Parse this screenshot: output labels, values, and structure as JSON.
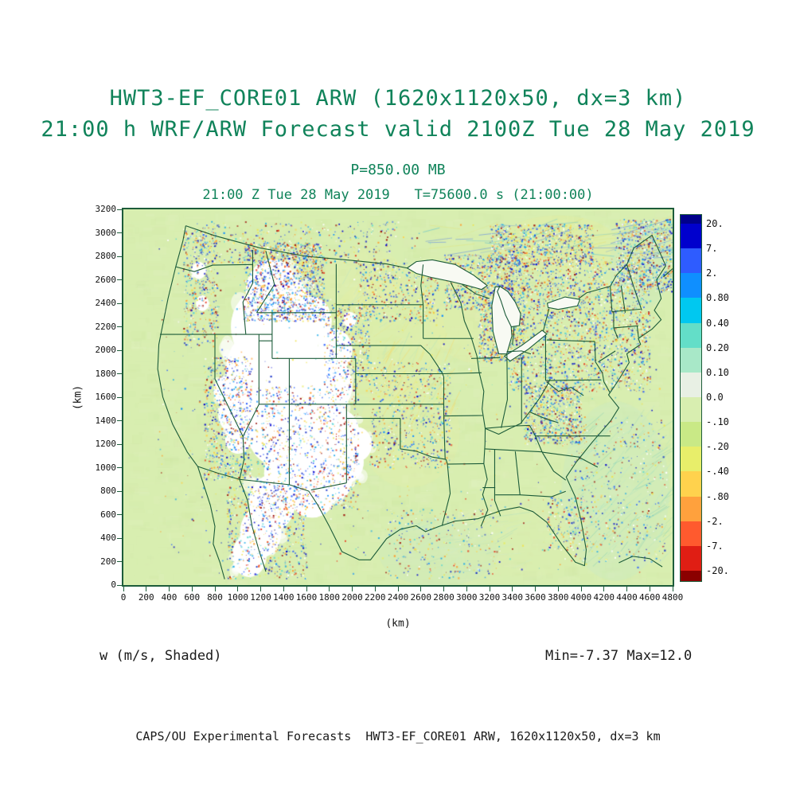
{
  "header": {
    "title_line1": "HWT3-EF_CORE01 ARW (1620x1120x50, dx=3 km)",
    "title_line2": "21:00 h WRF/ARW Forecast valid 2100Z Tue 28 May 2019",
    "pressure_label": "P=850.00 MB",
    "time_label": "21:00 Z Tue 28 May 2019   T=75600.0 s (21:00:00)",
    "text_color": "#10835a"
  },
  "axes": {
    "x": {
      "unit_label": "(km)",
      "min": 0,
      "max": 4800,
      "tick_step": 200,
      "tick_labels": [
        "0",
        "200",
        "400",
        "600",
        "800",
        "1000",
        "1200",
        "1400",
        "1600",
        "1800",
        "2000",
        "2200",
        "2400",
        "2600",
        "2800",
        "3000",
        "3200",
        "3400",
        "3600",
        "3800",
        "4000",
        "4200",
        "4400",
        "4600",
        "4800"
      ]
    },
    "y": {
      "unit_label": "(km)",
      "min": 0,
      "max": 3200,
      "tick_step": 200,
      "tick_labels": [
        "0",
        "200",
        "400",
        "600",
        "800",
        "1000",
        "1200",
        "1400",
        "1600",
        "1800",
        "2000",
        "2200",
        "2400",
        "2600",
        "2800",
        "3000",
        "3200"
      ]
    }
  },
  "colorbar": {
    "boundary_labels": [
      "20.",
      "7.",
      "2.",
      "0.80",
      "0.40",
      "0.20",
      "0.10",
      "0.0",
      "-.10",
      "-.20",
      "-.40",
      "-.80",
      "-2.",
      "-7.",
      "-20."
    ],
    "segment_colors": [
      "#00008b",
      "#0000cd",
      "#2e5cff",
      "#0f8fff",
      "#00c8f0",
      "#63dec8",
      "#a8e8c8",
      "#e8f0e4",
      "#d8eeb0",
      "#c9e986",
      "#e8ee6a",
      "#ffd24d",
      "#ffa13d",
      "#ff5a2e",
      "#e01e14",
      "#8b0000"
    ]
  },
  "annotations": {
    "field_label": "w (m/s, Shaded)",
    "minmax_label": "Min=-7.37 Max=12.0"
  },
  "footer": {
    "credit": "CAPS/OU Experimental Forecasts  HWT3-EF_CORE01 ARW, 1620x1120x50, dx=3 km"
  },
  "map": {
    "line_color": "#1d5c3a",
    "base_fill": "#d8eeb0",
    "lake_fill": "#f8faf3"
  },
  "chart_data": {
    "type": "heatmap",
    "title": "HWT3-EF_CORE01 ARW (1620x1120x50, dx=3 km)",
    "subtitle": "21:00 h WRF/ARW Forecast valid 2100Z Tue 28 May 2019",
    "variable": "w",
    "units": "m/s",
    "rendering": "Shaded",
    "pressure_level_mb": 850.0,
    "valid_time": "2100Z Tue 28 May 2019",
    "forecast_hour": "21:00 h",
    "model_time": "T=75600.0 s (21:00:00)",
    "xlabel": "(km)",
    "ylabel": "(km)",
    "xlim": [
      0,
      4800
    ],
    "ylim": [
      0,
      3200
    ],
    "x_tick_step": 200,
    "y_tick_step": 200,
    "contour_levels": [
      20,
      7,
      2,
      0.8,
      0.4,
      0.2,
      0.1,
      0.0,
      -0.1,
      -0.2,
      -0.4,
      -0.8,
      -2,
      -7,
      -20
    ],
    "min": -7.37,
    "max": 12.0,
    "region": "Continental United States with state boundaries",
    "legend_position": "right",
    "grid": false
  }
}
